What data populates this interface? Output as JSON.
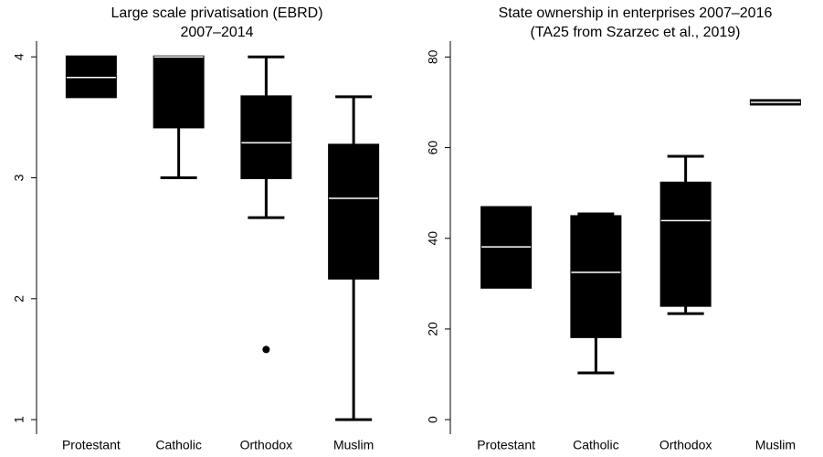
{
  "chart_data": [
    {
      "type": "box",
      "title": "Large scale privatisation (EBRD)",
      "subtitle": "2007–2014",
      "categories": [
        "Protestant",
        "Catholic",
        "Orthodox",
        "Muslim"
      ],
      "boxes": [
        {
          "low": 3.67,
          "q1": 3.67,
          "median": 3.83,
          "q3": 4.0,
          "high": 4.0
        },
        {
          "low": 3.0,
          "q1": 3.42,
          "median": 4.0,
          "q3": 4.0,
          "high": 4.0
        },
        {
          "low": 2.67,
          "q1": 3.0,
          "median": 3.29,
          "q3": 3.67,
          "high": 4.0,
          "outliers": [
            1.58
          ]
        },
        {
          "low": 1.0,
          "q1": 2.17,
          "median": 2.83,
          "q3": 3.27,
          "high": 3.67
        }
      ],
      "ylim": [
        0.88,
        4.13
      ],
      "yticks": [
        1,
        2,
        3,
        4
      ],
      "color": "#000000"
    },
    {
      "type": "box",
      "title": "State ownership in enterprises 2007–2016",
      "subtitle": "(TA25 from Szarzec et al., 2019)",
      "categories": [
        "Protestant",
        "Catholic",
        "Orthodox",
        "Muslim"
      ],
      "boxes": [
        {
          "low": 29.2,
          "q1": 29.2,
          "median": 38.1,
          "q3": 46.8,
          "high": 46.8
        },
        {
          "low": 10.3,
          "q1": 18.3,
          "median": 32.5,
          "q3": 44.8,
          "high": 45.4
        },
        {
          "low": 23.4,
          "q1": 25.2,
          "median": 43.9,
          "q3": 52.2,
          "high": 58.1
        },
        {
          "low": 69.6,
          "q1": 69.6,
          "median": 70,
          "q3": 70.4,
          "high": 70.4
        }
      ],
      "ylim": [
        -3.2,
        83.5
      ],
      "yticks": [
        0,
        20,
        40,
        60,
        80
      ],
      "color": "#000000"
    }
  ]
}
